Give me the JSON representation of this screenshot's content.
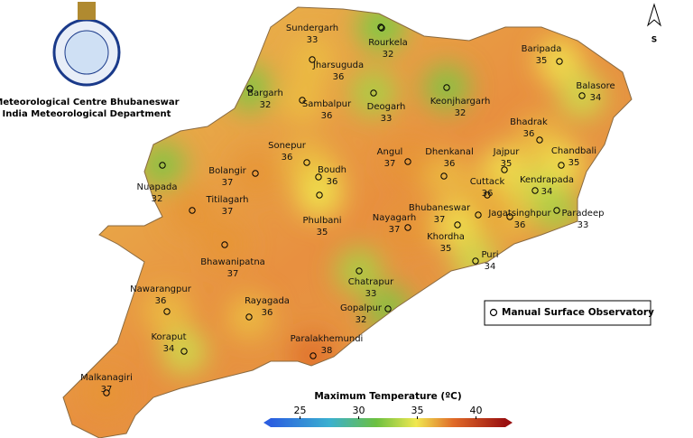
{
  "header": {
    "organization": "Meteorological Centre Bhubaneswar",
    "department": "India Meteorological Department"
  },
  "north_arrow": "S",
  "stations": [
    {
      "name": "Sundergarh",
      "temp": 33
    },
    {
      "name": "Rourkela",
      "temp": 32
    },
    {
      "name": "Jharsuguda",
      "temp": 36
    },
    {
      "name": "Bargarh",
      "temp": 32
    },
    {
      "name": "Sambalpur",
      "temp": 36
    },
    {
      "name": "Deogarh",
      "temp": 33
    },
    {
      "name": "Keonjhargarh",
      "temp": 32
    },
    {
      "name": "Baripada",
      "temp": 35
    },
    {
      "name": "Balasore",
      "temp": 34
    },
    {
      "name": "Bhadrak",
      "temp": 36
    },
    {
      "name": "Chandbali",
      "temp": 35
    },
    {
      "name": "Kendrapada",
      "temp": 34
    },
    {
      "name": "Jajpur",
      "temp": 35
    },
    {
      "name": "Dhenkanal",
      "temp": 36
    },
    {
      "name": "Angul",
      "temp": 37
    },
    {
      "name": "Sonepur",
      "temp": 36
    },
    {
      "name": "Boudh",
      "temp": 36
    },
    {
      "name": "Bolangir",
      "temp": 37
    },
    {
      "name": "Nuapada",
      "temp": 32
    },
    {
      "name": "Cuttack",
      "temp": 36
    },
    {
      "name": "Jagatsinghpur",
      "temp": 36
    },
    {
      "name": "Paradeep",
      "temp": 33
    },
    {
      "name": "Titilagarh",
      "temp": 37
    },
    {
      "name": "Phulbani",
      "temp": 35
    },
    {
      "name": "Nayagarh",
      "temp": 37
    },
    {
      "name": "Bhubaneswar",
      "temp": 37
    },
    {
      "name": "Khordha",
      "temp": 35
    },
    {
      "name": "Puri",
      "temp": 34
    },
    {
      "name": "Bhawanipatna",
      "temp": 37
    },
    {
      "name": "Nawarangpur",
      "temp": 36
    },
    {
      "name": "Chatrapur",
      "temp": 33
    },
    {
      "name": "Rayagada",
      "temp": 36
    },
    {
      "name": "Gopalpur",
      "temp": 32
    },
    {
      "name": "Koraput",
      "temp": 34
    },
    {
      "name": "Paralakhemundi",
      "temp": 38
    },
    {
      "name": "Malkanagiri",
      "temp": 37
    }
  ],
  "legend": "Manual Surface Observatory",
  "colorbar": {
    "title": "Maximum Temperature (ºC)",
    "range": [
      22.5,
      42.5
    ],
    "ticks": [
      25,
      30,
      35,
      40
    ]
  }
}
